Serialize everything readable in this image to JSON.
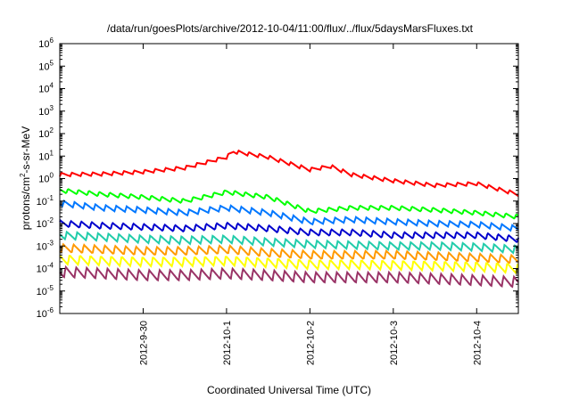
{
  "chart_data": {
    "type": "line",
    "title": "/data/run/goesPlots/archive/2012-10-04/11:00/flux/../flux/5daysMarsFluxes.txt",
    "xlabel": "Coordinated Universal Time (UTC)",
    "ylabel": {
      "prefix": "protons/cm",
      "sup": "2",
      "suffix": "-s-sr-MeV"
    },
    "yscale": "log",
    "ylim": [
      1e-06,
      1000000.0
    ],
    "y_ticks": [
      {
        "value": 1e-06,
        "base": "10",
        "exp": "-6"
      },
      {
        "value": 1e-05,
        "base": "10",
        "exp": "-5"
      },
      {
        "value": 0.0001,
        "base": "10",
        "exp": "-4"
      },
      {
        "value": 0.001,
        "base": "10",
        "exp": "-3"
      },
      {
        "value": 0.01,
        "base": "10",
        "exp": "-2"
      },
      {
        "value": 0.1,
        "base": "10",
        "exp": "-1"
      },
      {
        "value": 1,
        "base": "10",
        "exp": "0"
      },
      {
        "value": 10,
        "base": "10",
        "exp": "1"
      },
      {
        "value": 100,
        "base": "10",
        "exp": "2"
      },
      {
        "value": 1000,
        "base": "10",
        "exp": "3"
      },
      {
        "value": 10000.0,
        "base": "10",
        "exp": "4"
      },
      {
        "value": 100000.0,
        "base": "10",
        "exp": "5"
      },
      {
        "value": 1000000.0,
        "base": "10",
        "exp": "6"
      }
    ],
    "xlim": [
      "2012-09-29 00:00",
      "2012-10-04 12:00"
    ],
    "x_ticks": [
      {
        "value": "2012-09-30 00:00",
        "label": "2012-9-30"
      },
      {
        "value": "2012-10-01 00:00",
        "label": "2012-10-1"
      },
      {
        "value": "2012-10-02 00:00",
        "label": "2012-10-2"
      },
      {
        "value": "2012-10-03 00:00",
        "label": "2012-10-3"
      },
      {
        "value": "2012-10-04 00:00",
        "label": "2012-10-4"
      }
    ],
    "grid": false,
    "legend": "none",
    "sawtooth_period_hours": 3,
    "series": [
      {
        "color": "#ff0000",
        "points": [
          [
            "2012-09-29 00:00",
            1.5
          ],
          [
            "2012-09-29 12:00",
            1.6
          ],
          [
            "2012-09-30 00:00",
            2.0
          ],
          [
            "2012-09-30 12:00",
            3.0
          ],
          [
            "2012-10-01 00:00",
            9.0
          ],
          [
            "2012-10-01 02:00",
            16.0
          ],
          [
            "2012-10-01 12:00",
            9.0
          ],
          [
            "2012-10-02 00:00",
            2.5
          ],
          [
            "2012-10-02 06:00",
            3.5
          ],
          [
            "2012-10-02 12:00",
            1.5
          ],
          [
            "2012-10-03 00:00",
            0.8
          ],
          [
            "2012-10-03 12:00",
            0.5
          ],
          [
            "2012-10-04 00:00",
            0.6
          ],
          [
            "2012-10-04 12:00",
            0.2
          ]
        ]
      },
      {
        "color": "#00ff00",
        "points": [
          [
            "2012-09-29 00:00",
            0.3
          ],
          [
            "2012-09-29 12:00",
            0.2
          ],
          [
            "2012-09-30 00:00",
            0.15
          ],
          [
            "2012-09-30 12:00",
            0.1
          ],
          [
            "2012-10-01 00:00",
            0.25
          ],
          [
            "2012-10-01 12:00",
            0.15
          ],
          [
            "2012-10-02 00:00",
            0.035
          ],
          [
            "2012-10-02 12:00",
            0.05
          ],
          [
            "2012-10-03 00:00",
            0.05
          ],
          [
            "2012-10-03 12:00",
            0.04
          ],
          [
            "2012-10-04 00:00",
            0.03
          ],
          [
            "2012-10-04 12:00",
            0.02
          ]
        ]
      },
      {
        "color": "#0077ff",
        "points": [
          [
            "2012-09-29 00:00",
            0.08
          ],
          [
            "2012-09-29 12:00",
            0.05
          ],
          [
            "2012-09-30 00:00",
            0.04
          ],
          [
            "2012-09-30 12:00",
            0.03
          ],
          [
            "2012-10-01 00:00",
            0.05
          ],
          [
            "2012-10-01 12:00",
            0.03
          ],
          [
            "2012-10-02 00:00",
            0.012
          ],
          [
            "2012-10-02 12:00",
            0.015
          ],
          [
            "2012-10-03 00:00",
            0.012
          ],
          [
            "2012-10-03 12:00",
            0.01
          ],
          [
            "2012-10-04 00:00",
            0.009
          ],
          [
            "2012-10-04 12:00",
            0.006
          ]
        ]
      },
      {
        "color": "#0000cc",
        "points": [
          [
            "2012-09-29 00:00",
            0.01
          ],
          [
            "2012-09-29 12:00",
            0.008
          ],
          [
            "2012-09-30 00:00",
            0.007
          ],
          [
            "2012-09-30 12:00",
            0.006
          ],
          [
            "2012-10-01 00:00",
            0.008
          ],
          [
            "2012-10-01 12:00",
            0.006
          ],
          [
            "2012-10-02 00:00",
            0.004
          ],
          [
            "2012-10-02 12:00",
            0.004
          ],
          [
            "2012-10-03 00:00",
            0.003
          ],
          [
            "2012-10-03 12:00",
            0.003
          ],
          [
            "2012-10-04 00:00",
            0.003
          ],
          [
            "2012-10-04 12:00",
            0.002
          ]
        ]
      },
      {
        "color": "#22ccaa",
        "points": [
          [
            "2012-09-29 00:00",
            0.003
          ],
          [
            "2012-09-29 12:00",
            0.0025
          ],
          [
            "2012-09-30 00:00",
            0.002
          ],
          [
            "2012-09-30 12:00",
            0.0018
          ],
          [
            "2012-10-01 00:00",
            0.002
          ],
          [
            "2012-10-01 12:00",
            0.0015
          ],
          [
            "2012-10-02 00:00",
            0.0012
          ],
          [
            "2012-10-02 12:00",
            0.0011
          ],
          [
            "2012-10-03 00:00",
            0.001
          ],
          [
            "2012-10-03 12:00",
            0.001
          ],
          [
            "2012-10-04 00:00",
            0.0009
          ],
          [
            "2012-10-04 12:00",
            0.0007
          ]
        ]
      },
      {
        "color": "#ff9900",
        "points": [
          [
            "2012-09-29 00:00",
            0.0008
          ],
          [
            "2012-09-29 12:00",
            0.0007
          ],
          [
            "2012-09-30 00:00",
            0.0006
          ],
          [
            "2012-09-30 12:00",
            0.0006
          ],
          [
            "2012-10-01 00:00",
            0.0007
          ],
          [
            "2012-10-01 12:00",
            0.0005
          ],
          [
            "2012-10-02 00:00",
            0.0004
          ],
          [
            "2012-10-02 12:00",
            0.0004
          ],
          [
            "2012-10-03 00:00",
            0.0004
          ],
          [
            "2012-10-03 12:00",
            0.00035
          ],
          [
            "2012-10-04 00:00",
            0.0003
          ],
          [
            "2012-10-04 12:00",
            0.00025
          ]
        ]
      },
      {
        "color": "#ffff00",
        "points": [
          [
            "2012-09-29 00:00",
            0.00025
          ],
          [
            "2012-09-29 12:00",
            0.00022
          ],
          [
            "2012-09-30 00:00",
            0.0002
          ],
          [
            "2012-09-30 12:00",
            0.0002
          ],
          [
            "2012-10-01 00:00",
            0.00022
          ],
          [
            "2012-10-01 12:00",
            0.00018
          ],
          [
            "2012-10-02 00:00",
            0.00015
          ],
          [
            "2012-10-02 12:00",
            0.00015
          ],
          [
            "2012-10-03 00:00",
            0.00014
          ],
          [
            "2012-10-03 12:00",
            0.00013
          ],
          [
            "2012-10-04 00:00",
            0.00012
          ],
          [
            "2012-10-04 12:00",
            0.0001
          ]
        ]
      },
      {
        "color": "#993366",
        "points": [
          [
            "2012-09-29 00:00",
            7e-05
          ],
          [
            "2012-09-29 12:00",
            6e-05
          ],
          [
            "2012-09-30 00:00",
            5e-05
          ],
          [
            "2012-09-30 12:00",
            5e-05
          ],
          [
            "2012-10-01 00:00",
            6e-05
          ],
          [
            "2012-10-01 12:00",
            5e-05
          ],
          [
            "2012-10-02 00:00",
            4e-05
          ],
          [
            "2012-10-02 12:00",
            4e-05
          ],
          [
            "2012-10-03 00:00",
            4e-05
          ],
          [
            "2012-10-03 12:00",
            3.5e-05
          ],
          [
            "2012-10-04 00:00",
            3e-05
          ],
          [
            "2012-10-04 12:00",
            2.5e-05
          ]
        ]
      }
    ]
  }
}
